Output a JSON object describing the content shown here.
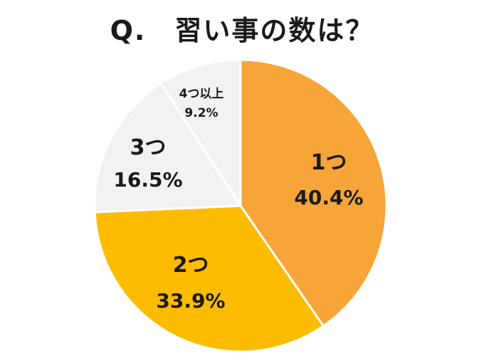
{
  "title": "Q.　習い事の数は？",
  "chart_data": {
    "type": "pie",
    "start": "12 o'clock",
    "direction": "clockwise",
    "slices": [
      {
        "label": "1つ",
        "value_label": "40.4%",
        "value": 40.4,
        "color": "#F7A438"
      },
      {
        "label": "2つ",
        "value_label": "33.9%",
        "value": 33.9,
        "color": "#FDBC00"
      },
      {
        "label": "3つ",
        "value_label": "16.5%",
        "value": 16.5,
        "color": "#F2F2F2"
      },
      {
        "label": "4つ以上",
        "value_label": "9.2%",
        "value": 9.2,
        "color": "#F2F2F2"
      }
    ],
    "separator_color": "#FFFFFF"
  }
}
